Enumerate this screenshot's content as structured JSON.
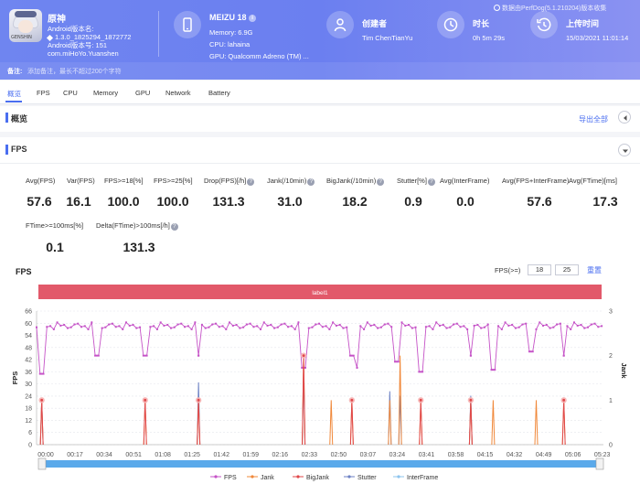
{
  "header": {
    "app": {
      "name": "原神",
      "version_label": "Android版本名:",
      "version_name": "1.3.0_1825294_1872772",
      "version_code": "Android版本号: 151",
      "package": "com.miHoYo.Yuanshen",
      "icon_tag": "GENSHIN"
    },
    "device": {
      "name": "MEIZU 18",
      "memory": "Memory: 6.9G",
      "cpu": "CPU: lahaina",
      "gpu": "GPU: Qualcomm Adreno (TM) ..."
    },
    "creator": {
      "label": "创建者",
      "value": "Tim ChenTianYu"
    },
    "duration": {
      "label": "时长",
      "value": "0h 5m 29s"
    },
    "upload": {
      "label": "上传时间",
      "value": "15/03/2021 11:01:14"
    },
    "watermark": "数据由PerfDog(5.1.210204)版本收集",
    "note_label": "备注:",
    "note_placeholder": "添加备注，最长不超过200个字符"
  },
  "tabs": [
    "概览",
    "FPS",
    "CPU",
    "Memory",
    "GPU",
    "Network",
    "Battery"
  ],
  "overview": {
    "title": "概览",
    "export_label": "导出全部"
  },
  "fps_section": {
    "title": "FPS",
    "metrics_row1": [
      {
        "label": "Avg(FPS)",
        "value": "57.6",
        "help": false
      },
      {
        "label": "Var(FPS)",
        "value": "16.1",
        "help": false
      },
      {
        "label": "FPS>=18[%]",
        "value": "100.0",
        "help": false
      },
      {
        "label": "FPS>=25[%]",
        "value": "100.0",
        "help": false
      },
      {
        "label": "Drop(FPS)[/h]",
        "value": "131.3",
        "help": true
      },
      {
        "label": "Jank(/10min)",
        "value": "31.0",
        "help": true
      },
      {
        "label": "BigJank(/10min)",
        "value": "18.2",
        "help": true
      },
      {
        "label": "Stutter[%]",
        "value": "0.9",
        "help": true
      },
      {
        "label": "Avg(InterFrame)",
        "value": "0.0",
        "help": false
      },
      {
        "label": "Avg(FPS+InterFrame)",
        "value": "57.6",
        "help": false
      },
      {
        "label": "Avg(FTime)[ms]",
        "value": "17.3",
        "help": false
      }
    ],
    "metrics_row2": [
      {
        "label": "FTime>=100ms[%]",
        "value": "0.1",
        "help": false
      },
      {
        "label": "Delta(FTime)>100ms[/h]",
        "value": "131.3",
        "help": true
      }
    ],
    "chart_title": "FPS",
    "threshold_label": "FPS(>=)",
    "threshold_low": "18",
    "threshold_high": "25",
    "reset_label": "重置"
  },
  "chart_data": {
    "type": "line",
    "label_band": "label1",
    "ylabel_left": "FPS",
    "ylabel_right": "Jank",
    "ylim_left": [
      0,
      66
    ],
    "yticks_left": [
      0,
      6,
      12,
      18,
      24,
      30,
      36,
      42,
      48,
      54,
      60,
      66
    ],
    "ylim_right": [
      0,
      3
    ],
    "yticks_right": [
      0,
      1,
      2,
      3
    ],
    "xlim": [
      0,
      329
    ],
    "x_ticks": [
      "00:00",
      "00:17",
      "00:34",
      "00:51",
      "01:08",
      "01:25",
      "01:42",
      "01:59",
      "02:16",
      "02:33",
      "02:50",
      "03:07",
      "03:24",
      "03:41",
      "03:58",
      "04:15",
      "04:32",
      "04:49",
      "05:06",
      "05:23"
    ],
    "x_tick_seconds": [
      0,
      17,
      34,
      51,
      68,
      85,
      102,
      119,
      136,
      153,
      170,
      187,
      204,
      221,
      238,
      255,
      272,
      289,
      306,
      323
    ],
    "legend": [
      "FPS",
      "Jank",
      "BigJank",
      "Stutter",
      "InterFrame"
    ],
    "colors": {
      "FPS": "#c552c7",
      "Jank": "#f0883a",
      "BigJank": "#e0474a",
      "Stutter": "#6d82c4",
      "InterFrame": "#8cc4ee",
      "band": "#e2596a"
    },
    "fps_dips": [
      [
        3,
        35
      ],
      [
        35,
        44
      ],
      [
        63,
        44
      ],
      [
        94,
        44
      ],
      [
        155,
        38
      ],
      [
        183,
        44
      ],
      [
        186,
        38
      ],
      [
        209,
        41
      ],
      [
        223,
        36
      ],
      [
        252,
        44
      ],
      [
        265,
        37
      ],
      [
        287,
        46
      ],
      [
        306,
        44
      ]
    ],
    "jank_spikes": [
      [
        3,
        1
      ],
      [
        63,
        1
      ],
      [
        94,
        1
      ],
      [
        155,
        2
      ],
      [
        171,
        1
      ],
      [
        183,
        1
      ],
      [
        205,
        1
      ],
      [
        211,
        2
      ],
      [
        223,
        1
      ],
      [
        252,
        1
      ],
      [
        265,
        1
      ],
      [
        290,
        1
      ],
      [
        306,
        1
      ]
    ],
    "bigjank_spikes": [
      [
        3,
        1
      ],
      [
        63,
        1
      ],
      [
        94,
        1
      ],
      [
        155,
        2
      ],
      [
        183,
        1
      ],
      [
        223,
        1
      ],
      [
        252,
        1
      ],
      [
        306,
        1
      ]
    ],
    "stutter_spikes": [
      [
        3,
        1
      ],
      [
        94,
        1.4
      ],
      [
        155,
        1.6
      ],
      [
        205,
        1.2
      ],
      [
        211,
        1.1
      ],
      [
        252,
        1.1
      ]
    ]
  }
}
